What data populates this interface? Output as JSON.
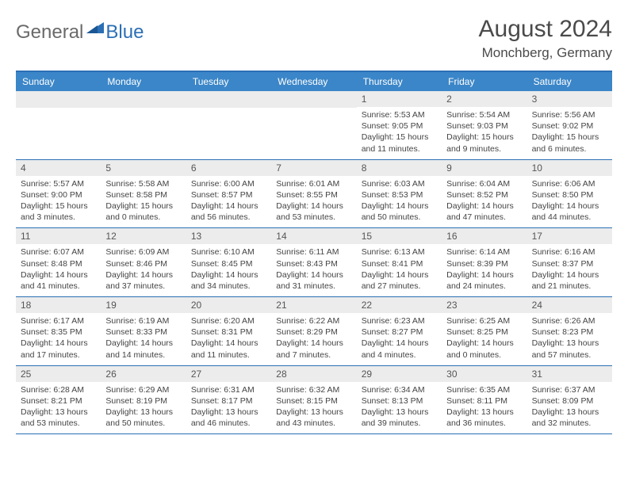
{
  "logo": {
    "general": "General",
    "blue": "Blue"
  },
  "title": {
    "month": "August 2024",
    "location": "Monchberg, Germany"
  },
  "colors": {
    "header_bar": "#3b86c8",
    "border": "#2b6fb5",
    "daynum_bg": "#ececec",
    "logo_gray": "#6a6a6a",
    "logo_blue": "#2b6fb5"
  },
  "weekdays": [
    "Sunday",
    "Monday",
    "Tuesday",
    "Wednesday",
    "Thursday",
    "Friday",
    "Saturday"
  ],
  "weeks": [
    [
      null,
      null,
      null,
      null,
      {
        "n": "1",
        "sr": "5:53 AM",
        "ss": "9:05 PM",
        "dl": "15 hours and 11 minutes."
      },
      {
        "n": "2",
        "sr": "5:54 AM",
        "ss": "9:03 PM",
        "dl": "15 hours and 9 minutes."
      },
      {
        "n": "3",
        "sr": "5:56 AM",
        "ss": "9:02 PM",
        "dl": "15 hours and 6 minutes."
      }
    ],
    [
      {
        "n": "4",
        "sr": "5:57 AM",
        "ss": "9:00 PM",
        "dl": "15 hours and 3 minutes."
      },
      {
        "n": "5",
        "sr": "5:58 AM",
        "ss": "8:58 PM",
        "dl": "15 hours and 0 minutes."
      },
      {
        "n": "6",
        "sr": "6:00 AM",
        "ss": "8:57 PM",
        "dl": "14 hours and 56 minutes."
      },
      {
        "n": "7",
        "sr": "6:01 AM",
        "ss": "8:55 PM",
        "dl": "14 hours and 53 minutes."
      },
      {
        "n": "8",
        "sr": "6:03 AM",
        "ss": "8:53 PM",
        "dl": "14 hours and 50 minutes."
      },
      {
        "n": "9",
        "sr": "6:04 AM",
        "ss": "8:52 PM",
        "dl": "14 hours and 47 minutes."
      },
      {
        "n": "10",
        "sr": "6:06 AM",
        "ss": "8:50 PM",
        "dl": "14 hours and 44 minutes."
      }
    ],
    [
      {
        "n": "11",
        "sr": "6:07 AM",
        "ss": "8:48 PM",
        "dl": "14 hours and 41 minutes."
      },
      {
        "n": "12",
        "sr": "6:09 AM",
        "ss": "8:46 PM",
        "dl": "14 hours and 37 minutes."
      },
      {
        "n": "13",
        "sr": "6:10 AM",
        "ss": "8:45 PM",
        "dl": "14 hours and 34 minutes."
      },
      {
        "n": "14",
        "sr": "6:11 AM",
        "ss": "8:43 PM",
        "dl": "14 hours and 31 minutes."
      },
      {
        "n": "15",
        "sr": "6:13 AM",
        "ss": "8:41 PM",
        "dl": "14 hours and 27 minutes."
      },
      {
        "n": "16",
        "sr": "6:14 AM",
        "ss": "8:39 PM",
        "dl": "14 hours and 24 minutes."
      },
      {
        "n": "17",
        "sr": "6:16 AM",
        "ss": "8:37 PM",
        "dl": "14 hours and 21 minutes."
      }
    ],
    [
      {
        "n": "18",
        "sr": "6:17 AM",
        "ss": "8:35 PM",
        "dl": "14 hours and 17 minutes."
      },
      {
        "n": "19",
        "sr": "6:19 AM",
        "ss": "8:33 PM",
        "dl": "14 hours and 14 minutes."
      },
      {
        "n": "20",
        "sr": "6:20 AM",
        "ss": "8:31 PM",
        "dl": "14 hours and 11 minutes."
      },
      {
        "n": "21",
        "sr": "6:22 AM",
        "ss": "8:29 PM",
        "dl": "14 hours and 7 minutes."
      },
      {
        "n": "22",
        "sr": "6:23 AM",
        "ss": "8:27 PM",
        "dl": "14 hours and 4 minutes."
      },
      {
        "n": "23",
        "sr": "6:25 AM",
        "ss": "8:25 PM",
        "dl": "14 hours and 0 minutes."
      },
      {
        "n": "24",
        "sr": "6:26 AM",
        "ss": "8:23 PM",
        "dl": "13 hours and 57 minutes."
      }
    ],
    [
      {
        "n": "25",
        "sr": "6:28 AM",
        "ss": "8:21 PM",
        "dl": "13 hours and 53 minutes."
      },
      {
        "n": "26",
        "sr": "6:29 AM",
        "ss": "8:19 PM",
        "dl": "13 hours and 50 minutes."
      },
      {
        "n": "27",
        "sr": "6:31 AM",
        "ss": "8:17 PM",
        "dl": "13 hours and 46 minutes."
      },
      {
        "n": "28",
        "sr": "6:32 AM",
        "ss": "8:15 PM",
        "dl": "13 hours and 43 minutes."
      },
      {
        "n": "29",
        "sr": "6:34 AM",
        "ss": "8:13 PM",
        "dl": "13 hours and 39 minutes."
      },
      {
        "n": "30",
        "sr": "6:35 AM",
        "ss": "8:11 PM",
        "dl": "13 hours and 36 minutes."
      },
      {
        "n": "31",
        "sr": "6:37 AM",
        "ss": "8:09 PM",
        "dl": "13 hours and 32 minutes."
      }
    ]
  ],
  "labels": {
    "sunrise": "Sunrise:",
    "sunset": "Sunset:",
    "daylight": "Daylight:"
  }
}
